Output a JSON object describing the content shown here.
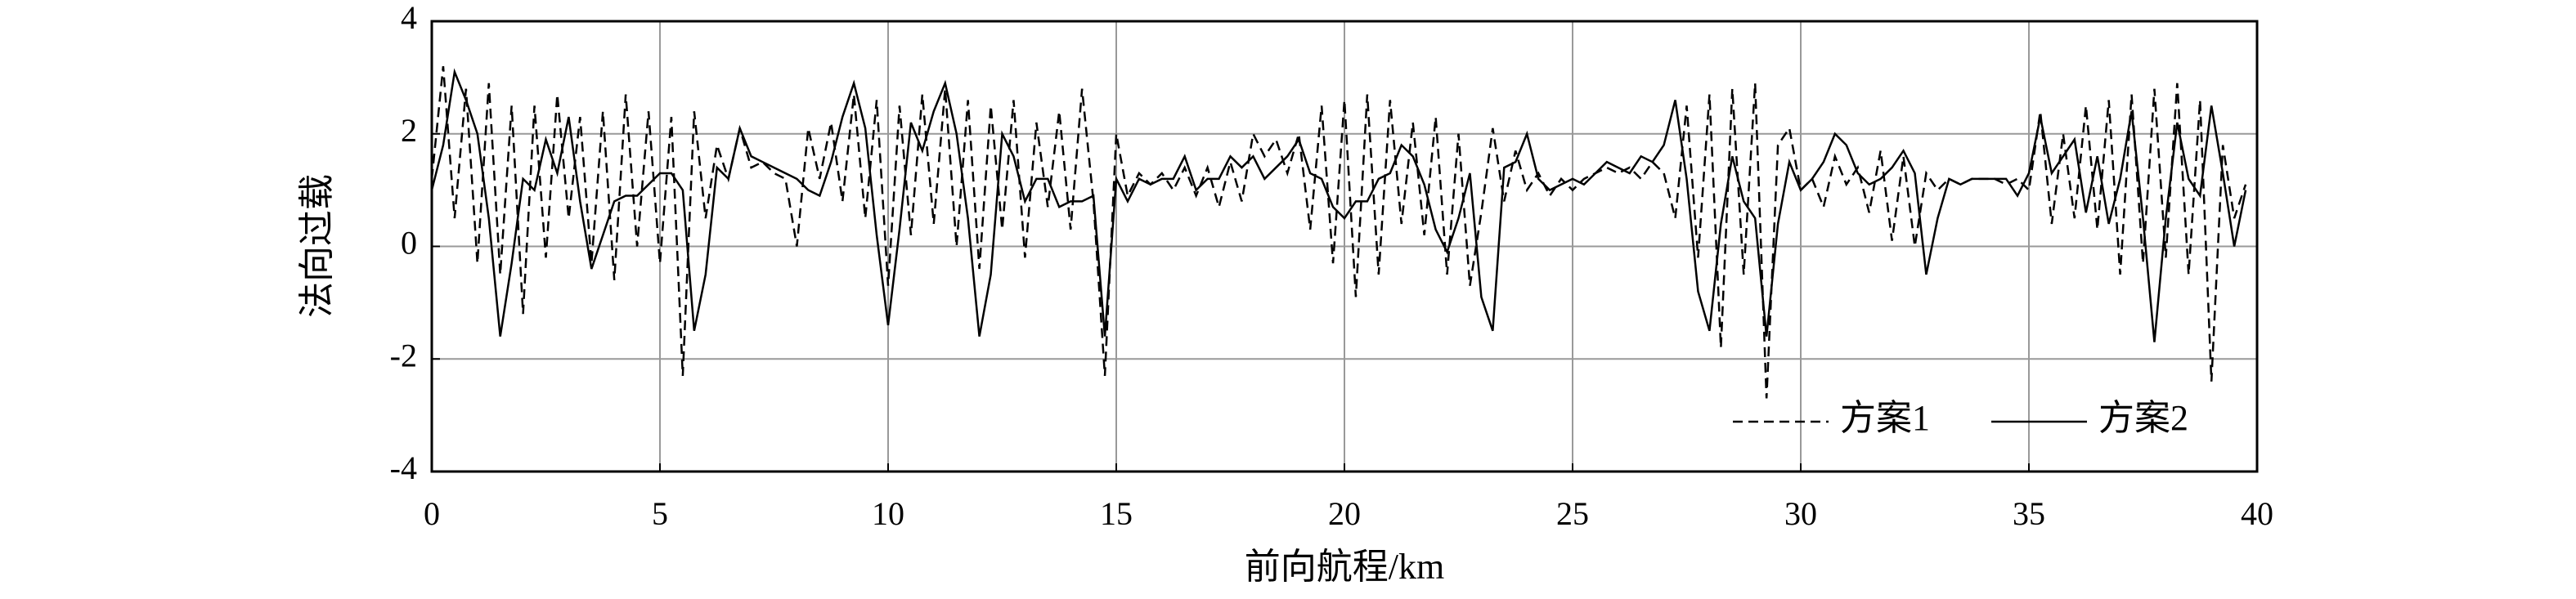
{
  "chart_data": {
    "type": "line",
    "xlabel": "前向航程/km",
    "ylabel": "法向过载",
    "xlim": [
      0,
      40
    ],
    "ylim": [
      -4,
      4
    ],
    "xticks": [
      0,
      5,
      10,
      15,
      20,
      25,
      30,
      35,
      40
    ],
    "yticks": [
      -4,
      -2,
      0,
      2,
      4
    ],
    "grid": true,
    "legend": "lower right",
    "x": [
      0,
      0.25,
      0.5,
      0.75,
      1,
      1.25,
      1.5,
      1.75,
      2,
      2.25,
      2.5,
      2.75,
      3,
      3.25,
      3.5,
      3.75,
      4,
      4.25,
      4.5,
      4.75,
      5,
      5.25,
      5.5,
      5.75,
      6,
      6.25,
      6.5,
      6.75,
      7,
      7.25,
      7.5,
      7.75,
      8,
      8.25,
      8.5,
      8.75,
      9,
      9.25,
      9.5,
      9.75,
      10,
      10.25,
      10.5,
      10.75,
      11,
      11.25,
      11.5,
      11.75,
      12,
      12.25,
      12.5,
      12.75,
      13,
      13.25,
      13.5,
      13.75,
      14,
      14.25,
      14.5,
      14.75,
      15,
      15.25,
      15.5,
      15.75,
      16,
      16.25,
      16.5,
      16.75,
      17,
      17.25,
      17.5,
      17.75,
      18,
      18.25,
      18.5,
      18.75,
      19,
      19.25,
      19.5,
      19.75,
      20,
      20.25,
      20.5,
      20.75,
      21,
      21.25,
      21.5,
      21.75,
      22,
      22.25,
      22.5,
      22.75,
      23,
      23.25,
      23.5,
      23.75,
      24,
      24.25,
      24.5,
      24.75,
      25,
      25.25,
      25.5,
      25.75,
      26,
      26.25,
      26.5,
      26.75,
      27,
      27.25,
      27.5,
      27.75,
      28,
      28.25,
      28.5,
      28.75,
      29,
      29.25,
      29.5,
      29.75,
      30,
      30.25,
      30.5,
      30.75,
      31,
      31.25,
      31.5,
      31.75,
      32,
      32.25,
      32.5,
      32.75,
      33,
      33.25,
      33.5,
      33.75,
      34,
      34.25,
      34.5,
      34.75,
      35,
      35.25,
      35.5,
      35.75,
      36,
      36.25,
      36.5,
      36.75,
      37,
      37.25,
      37.5,
      37.75,
      38,
      38.25,
      38.5,
      38.75,
      39,
      39.25,
      39.5,
      39.75
    ],
    "series": [
      {
        "name": "方案1",
        "color": "#000000",
        "dash": true,
        "values": [
          1.2,
          3.2,
          0.5,
          2.8,
          -0.3,
          2.9,
          -0.5,
          2.5,
          -1.2,
          2.5,
          -0.2,
          2.7,
          0.5,
          2.3,
          -0.3,
          2.4,
          -0.6,
          2.7,
          0.0,
          2.4,
          -0.3,
          2.3,
          -2.3,
          2.4,
          0.5,
          1.8,
          1.2,
          2.1,
          1.4,
          1.5,
          1.3,
          1.2,
          0.0,
          2.1,
          1.2,
          2.2,
          0.8,
          2.7,
          0.5,
          2.6,
          -0.7,
          2.5,
          0.2,
          2.7,
          0.4,
          2.8,
          0.0,
          2.6,
          -0.4,
          2.5,
          0.3,
          2.6,
          -0.2,
          2.2,
          0.7,
          2.4,
          0.3,
          2.8,
          0.8,
          -2.3,
          2.0,
          0.9,
          1.3,
          1.1,
          1.3,
          1.0,
          1.4,
          0.9,
          1.4,
          0.7,
          1.5,
          0.8,
          2.0,
          1.6,
          1.9,
          1.3,
          2.0,
          0.3,
          2.5,
          -0.3,
          2.6,
          -0.9,
          2.7,
          -0.5,
          2.6,
          0.4,
          2.2,
          0.2,
          2.3,
          -0.5,
          2.0,
          -0.7,
          0.6,
          2.1,
          0.8,
          1.7,
          1.0,
          1.3,
          0.9,
          1.2,
          1.0,
          1.2,
          1.3,
          1.4,
          1.3,
          1.4,
          1.2,
          1.5,
          1.3,
          0.5,
          2.5,
          -0.2,
          2.7,
          -1.8,
          2.8,
          -0.5,
          2.9,
          -2.7,
          1.8,
          2.1,
          1.0,
          1.2,
          0.7,
          1.6,
          1.1,
          1.4,
          0.6,
          1.7,
          0.1,
          1.6,
          0.0,
          1.3,
          1.0,
          1.2,
          1.1,
          1.2,
          1.2,
          1.2,
          1.1,
          1.2,
          1.0,
          2.4,
          0.4,
          2.0,
          0.5,
          2.5,
          0.3,
          2.6,
          -0.5,
          2.7,
          -0.3,
          2.8,
          -0.2,
          2.9,
          -0.5,
          2.6,
          -2.4,
          1.8,
          0.5,
          1.1
        ]
      },
      {
        "name": "方案2",
        "color": "#000000",
        "dash": false,
        "values": [
          1.0,
          1.8,
          3.1,
          2.6,
          2.0,
          0.5,
          -1.6,
          -0.3,
          1.2,
          1.0,
          1.9,
          1.3,
          2.3,
          0.8,
          -0.4,
          0.2,
          0.8,
          0.9,
          0.9,
          1.1,
          1.3,
          1.3,
          1.0,
          -1.5,
          -0.5,
          1.4,
          1.2,
          2.1,
          1.6,
          1.5,
          1.4,
          1.3,
          1.2,
          1.0,
          0.9,
          1.5,
          2.3,
          2.9,
          2.1,
          0.2,
          -1.4,
          0.3,
          2.2,
          1.7,
          2.4,
          2.9,
          2.0,
          0.5,
          -1.6,
          -0.5,
          2.0,
          1.6,
          0.8,
          1.2,
          1.2,
          0.7,
          0.8,
          0.8,
          0.9,
          -1.6,
          1.2,
          0.8,
          1.2,
          1.1,
          1.2,
          1.2,
          1.6,
          1.0,
          1.2,
          1.2,
          1.6,
          1.4,
          1.6,
          1.2,
          1.4,
          1.6,
          1.9,
          1.3,
          1.2,
          0.7,
          0.5,
          0.8,
          0.8,
          1.2,
          1.3,
          1.8,
          1.6,
          1.1,
          0.3,
          -0.1,
          0.5,
          1.3,
          -0.9,
          -1.5,
          1.4,
          1.5,
          2.0,
          1.2,
          1.0,
          1.1,
          1.2,
          1.1,
          1.3,
          1.5,
          1.4,
          1.3,
          1.6,
          1.5,
          1.8,
          2.6,
          1.2,
          -0.8,
          -1.5,
          0.4,
          1.6,
          0.8,
          0.5,
          -1.6,
          0.4,
          1.5,
          1.0,
          1.2,
          1.5,
          2.0,
          1.8,
          1.3,
          1.1,
          1.2,
          1.4,
          1.7,
          1.3,
          -0.5,
          0.5,
          1.2,
          1.1,
          1.2,
          1.2,
          1.2,
          1.2,
          0.9,
          1.3,
          2.3,
          1.3,
          1.6,
          1.9,
          0.6,
          1.6,
          0.4,
          1.2,
          2.4,
          0.5,
          -1.7,
          0.5,
          2.2,
          1.2,
          0.9,
          2.5,
          1.3,
          0.0,
          1.0
        ]
      }
    ]
  }
}
